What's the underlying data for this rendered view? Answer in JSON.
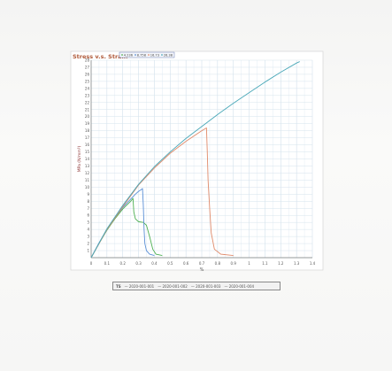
{
  "chart_data": {
    "type": "line",
    "title": "Stress v.s. Strain",
    "xlabel": "%",
    "ylabel": "MPa (N/mm²)",
    "xlim": [
      0,
      1.4
    ],
    "ylim": [
      0,
      28
    ],
    "x_ticks": [
      0,
      0.1,
      0.2,
      0.3,
      0.4,
      0.5,
      0.6,
      0.7,
      0.8,
      0.9,
      1,
      1.1,
      1.2,
      1.3,
      1.4
    ],
    "y_ticks": [
      1,
      2,
      3,
      4,
      5,
      6,
      7,
      8,
      9,
      10,
      11,
      12,
      13,
      14,
      15,
      16,
      17,
      18,
      19,
      20,
      21,
      22,
      23,
      24,
      25,
      26,
      27,
      28
    ],
    "grid": true,
    "legend_placement": "top",
    "series": [
      {
        "name": "4.236",
        "color": "#4caf50",
        "points": [
          [
            0,
            0
          ],
          [
            0.05,
            2.0
          ],
          [
            0.1,
            3.9
          ],
          [
            0.15,
            5.5
          ],
          [
            0.2,
            6.9
          ],
          [
            0.25,
            8.0
          ],
          [
            0.265,
            8.4
          ],
          [
            0.27,
            6.5
          ],
          [
            0.28,
            5.5
          ],
          [
            0.3,
            5.1
          ],
          [
            0.33,
            5.0
          ],
          [
            0.35,
            4.6
          ],
          [
            0.37,
            3.0
          ],
          [
            0.39,
            1.2
          ],
          [
            0.41,
            0.5
          ],
          [
            0.45,
            0.3
          ]
        ]
      },
      {
        "name": "8.758",
        "color": "#5b8fd6",
        "points": [
          [
            0,
            0
          ],
          [
            0.05,
            2.1
          ],
          [
            0.1,
            4.0
          ],
          [
            0.15,
            5.7
          ],
          [
            0.2,
            7.1
          ],
          [
            0.25,
            8.3
          ],
          [
            0.28,
            9.0
          ],
          [
            0.3,
            9.4
          ],
          [
            0.32,
            9.7
          ],
          [
            0.325,
            9.8
          ],
          [
            0.33,
            7.5
          ],
          [
            0.335,
            4.0
          ],
          [
            0.34,
            2.0
          ],
          [
            0.35,
            1.0
          ],
          [
            0.37,
            0.5
          ],
          [
            0.4,
            0.3
          ]
        ]
      },
      {
        "name": "16.73",
        "color": "#e08a6a",
        "points": [
          [
            0,
            0
          ],
          [
            0.1,
            4.0
          ],
          [
            0.2,
            7.2
          ],
          [
            0.3,
            10.3
          ],
          [
            0.4,
            12.7
          ],
          [
            0.5,
            14.8
          ],
          [
            0.6,
            16.5
          ],
          [
            0.7,
            18.0
          ],
          [
            0.73,
            18.4
          ],
          [
            0.735,
            15.0
          ],
          [
            0.74,
            11.0
          ],
          [
            0.75,
            7.0
          ],
          [
            0.76,
            3.5
          ],
          [
            0.78,
            1.2
          ],
          [
            0.82,
            0.5
          ],
          [
            0.9,
            0.3
          ]
        ]
      },
      {
        "name": "26.38",
        "color": "#4aa8b8",
        "points": [
          [
            0,
            0
          ],
          [
            0.1,
            4.1
          ],
          [
            0.2,
            7.4
          ],
          [
            0.3,
            10.4
          ],
          [
            0.4,
            12.9
          ],
          [
            0.5,
            15.0
          ],
          [
            0.6,
            16.9
          ],
          [
            0.7,
            18.6
          ],
          [
            0.8,
            20.3
          ],
          [
            0.9,
            21.9
          ],
          [
            1.0,
            23.4
          ],
          [
            1.1,
            24.9
          ],
          [
            1.2,
            26.3
          ],
          [
            1.3,
            27.6
          ],
          [
            1.32,
            27.8
          ]
        ]
      }
    ]
  },
  "bottom_legend": {
    "label": "TS",
    "entries": [
      "— 2020-001-001",
      "— 2020-001-002",
      "— 2020-001-003",
      "— 2020-001-004"
    ]
  }
}
